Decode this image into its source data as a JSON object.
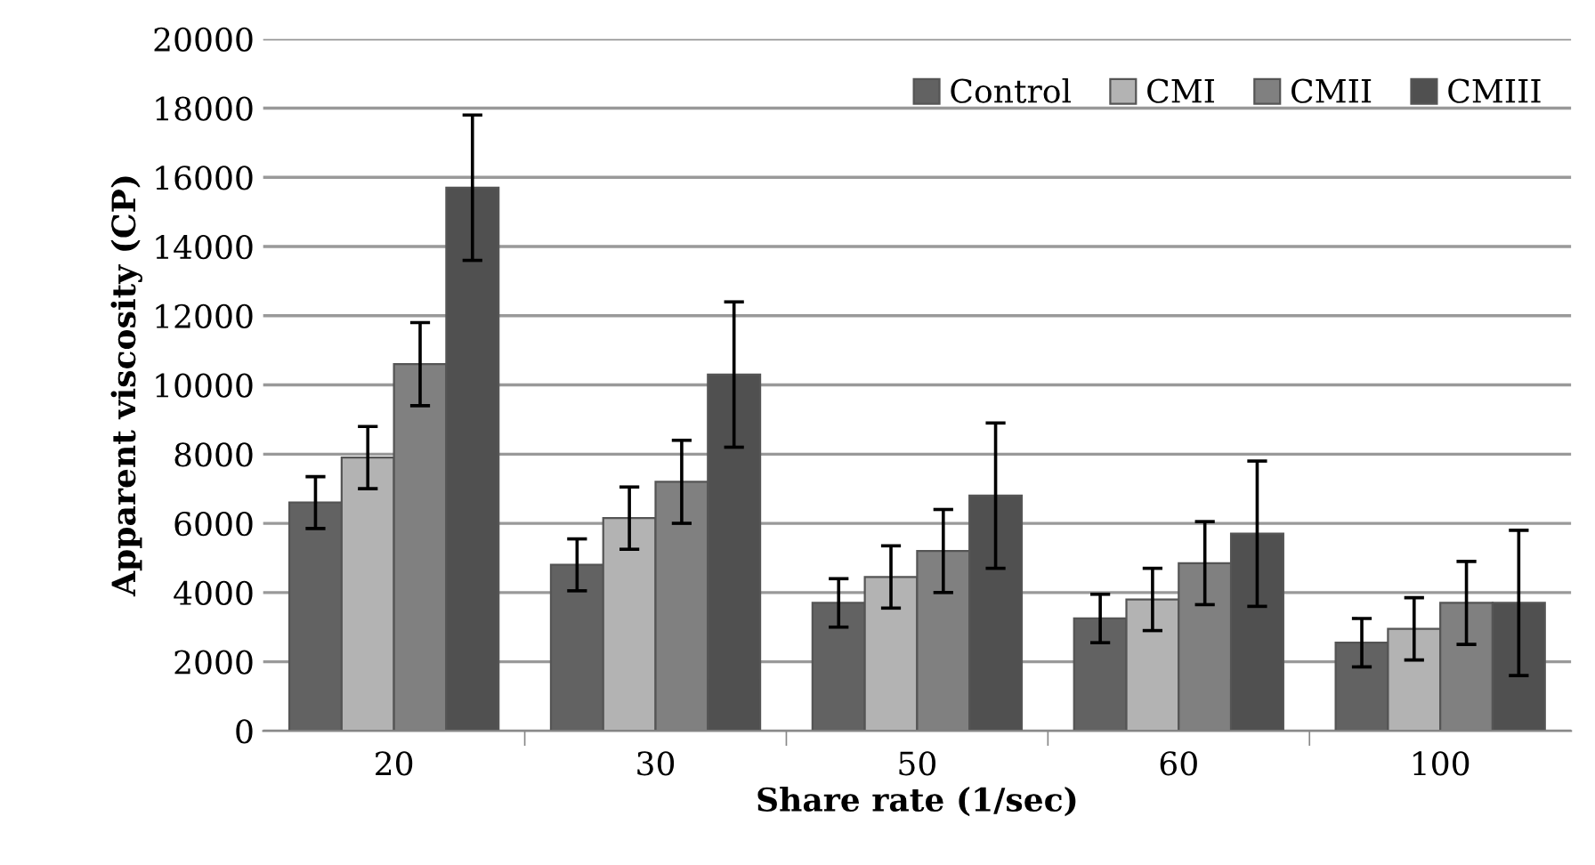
{
  "chart_data": {
    "type": "bar",
    "xlabel": "Share rate (1/sec)",
    "ylabel": "Apparent viscosity (CP)",
    "categories": [
      "20",
      "30",
      "50",
      "60",
      "100"
    ],
    "series": [
      {
        "name": "Control",
        "color": "#626262",
        "values": [
          6600,
          4800,
          3700,
          3250,
          2550
        ],
        "errors": [
          750,
          750,
          700,
          700,
          700
        ]
      },
      {
        "name": "CMI",
        "color": "#b3b3b3",
        "values": [
          7900,
          6150,
          4450,
          3800,
          2950
        ],
        "errors": [
          900,
          900,
          900,
          900,
          900
        ]
      },
      {
        "name": "CMII",
        "color": "#808080",
        "values": [
          10600,
          7200,
          5200,
          4850,
          3700
        ],
        "errors": [
          1200,
          1200,
          1200,
          1200,
          1200
        ]
      },
      {
        "name": "CMIII",
        "color": "#505050",
        "values": [
          15700,
          10300,
          6800,
          5700,
          3700
        ],
        "errors": [
          2100,
          2100,
          2100,
          2100,
          2100
        ]
      }
    ],
    "ylim": [
      0,
      20000
    ],
    "yticks": [
      0,
      2000,
      4000,
      6000,
      8000,
      10000,
      12000,
      14000,
      16000,
      18000,
      20000
    ],
    "grid": "y",
    "legend": "top right"
  }
}
